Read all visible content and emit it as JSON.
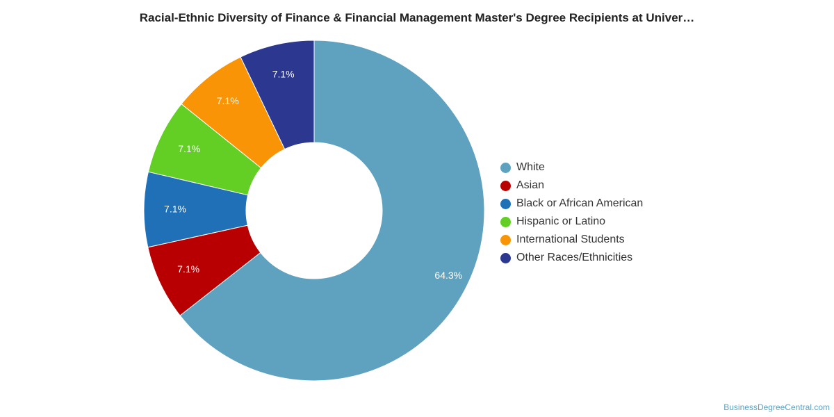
{
  "chart_data": {
    "type": "pie",
    "title": "Racial-Ethnic Diversity of Finance & Financial Management Master's Degree Recipients at Univer…",
    "categories": [
      "White",
      "Asian",
      "Black or African American",
      "Hispanic or Latino",
      "International Students",
      "Other Races/Ethnicities"
    ],
    "values": [
      64.3,
      7.1,
      7.1,
      7.1,
      7.1,
      7.1
    ],
    "value_labels": [
      "64.3%",
      "7.1%",
      "7.1%",
      "7.1%",
      "7.1%",
      "7.1%"
    ],
    "colors": [
      "#5fa2bf",
      "#b80003",
      "#1f70b7",
      "#63cf25",
      "#f89406",
      "#2c3890"
    ],
    "donut": true,
    "legend_position": "right"
  },
  "credit": "BusinessDegreeCentral.com"
}
